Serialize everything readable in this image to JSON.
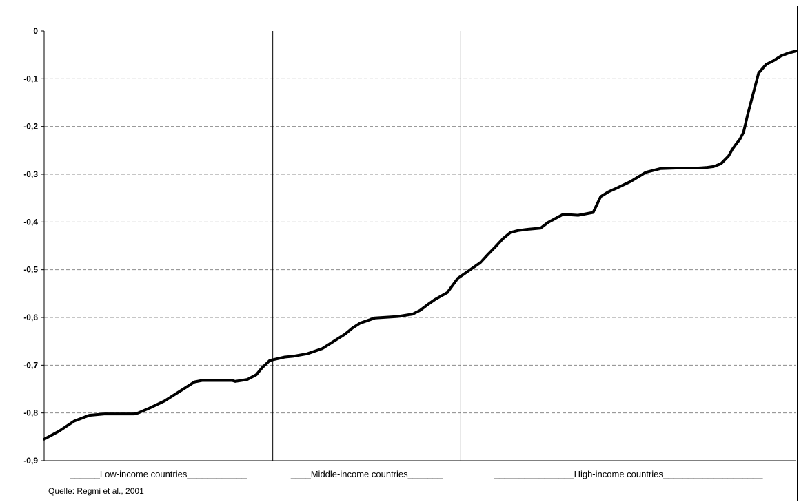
{
  "chart_data": {
    "type": "line",
    "title": "",
    "xlabel": "",
    "ylabel": "",
    "ylim": [
      -0.9,
      0
    ],
    "yticks": [
      0,
      -0.1,
      -0.2,
      -0.3,
      -0.4,
      -0.5,
      -0.6,
      -0.7,
      -0.8,
      -0.9
    ],
    "ytick_labels": [
      "0",
      "-0,1",
      "-0,2",
      "-0,3",
      "-0,4",
      "-0,5",
      "-0,6",
      "-0,7",
      "-0,8",
      "-0,9"
    ],
    "grid": "horizontal dashed",
    "legend": "none",
    "groups": [
      {
        "label": "______Low-income countries____________",
        "start": 0,
        "end": 0.304
      },
      {
        "label": "____Middle-income countries_______",
        "start": 0.304,
        "end": 0.554
      },
      {
        "label": "________________High-income countries____________________",
        "start": 0.554,
        "end": 1
      }
    ],
    "series": [
      {
        "color": "#000000",
        "x": [
          0,
          0.02,
          0.04,
          0.06,
          0.08,
          0.1,
          0.12,
          0.125,
          0.14,
          0.16,
          0.18,
          0.2,
          0.21,
          0.23,
          0.25,
          0.254,
          0.27,
          0.282,
          0.29,
          0.3,
          0.32,
          0.332,
          0.35,
          0.37,
          0.39,
          0.4,
          0.41,
          0.42,
          0.44,
          0.47,
          0.49,
          0.5,
          0.51,
          0.52,
          0.536,
          0.55,
          0.562,
          0.58,
          0.59,
          0.6,
          0.61,
          0.62,
          0.63,
          0.64,
          0.645,
          0.66,
          0.67,
          0.69,
          0.71,
          0.73,
          0.74,
          0.75,
          0.76,
          0.78,
          0.8,
          0.82,
          0.84,
          0.86,
          0.87,
          0.88,
          0.89,
          0.9,
          0.91,
          0.915,
          0.92,
          0.925,
          0.93,
          0.935,
          0.94,
          0.95,
          0.96,
          0.97,
          0.98,
          0.99,
          1
        ],
        "values": [
          -0.855,
          -0.838,
          -0.817,
          -0.805,
          -0.802,
          -0.802,
          -0.802,
          -0.8,
          -0.79,
          -0.775,
          -0.755,
          -0.735,
          -0.732,
          -0.732,
          -0.732,
          -0.734,
          -0.73,
          -0.72,
          -0.705,
          -0.69,
          -0.683,
          -0.681,
          -0.676,
          -0.665,
          -0.645,
          -0.635,
          -0.622,
          -0.612,
          -0.601,
          -0.598,
          -0.593,
          -0.585,
          -0.573,
          -0.562,
          -0.548,
          -0.518,
          -0.505,
          -0.485,
          -0.468,
          -0.452,
          -0.435,
          -0.422,
          -0.418,
          -0.416,
          -0.415,
          -0.413,
          -0.401,
          -0.384,
          -0.386,
          -0.38,
          -0.347,
          -0.337,
          -0.33,
          -0.315,
          -0.296,
          -0.288,
          -0.287,
          -0.287,
          -0.287,
          -0.286,
          -0.284,
          -0.278,
          -0.262,
          -0.248,
          -0.237,
          -0.227,
          -0.212,
          -0.178,
          -0.148,
          -0.088,
          -0.07,
          -0.062,
          -0.052,
          -0.046,
          -0.042
        ]
      }
    ],
    "source_note": "Quelle: Regmi et al., 2001"
  }
}
